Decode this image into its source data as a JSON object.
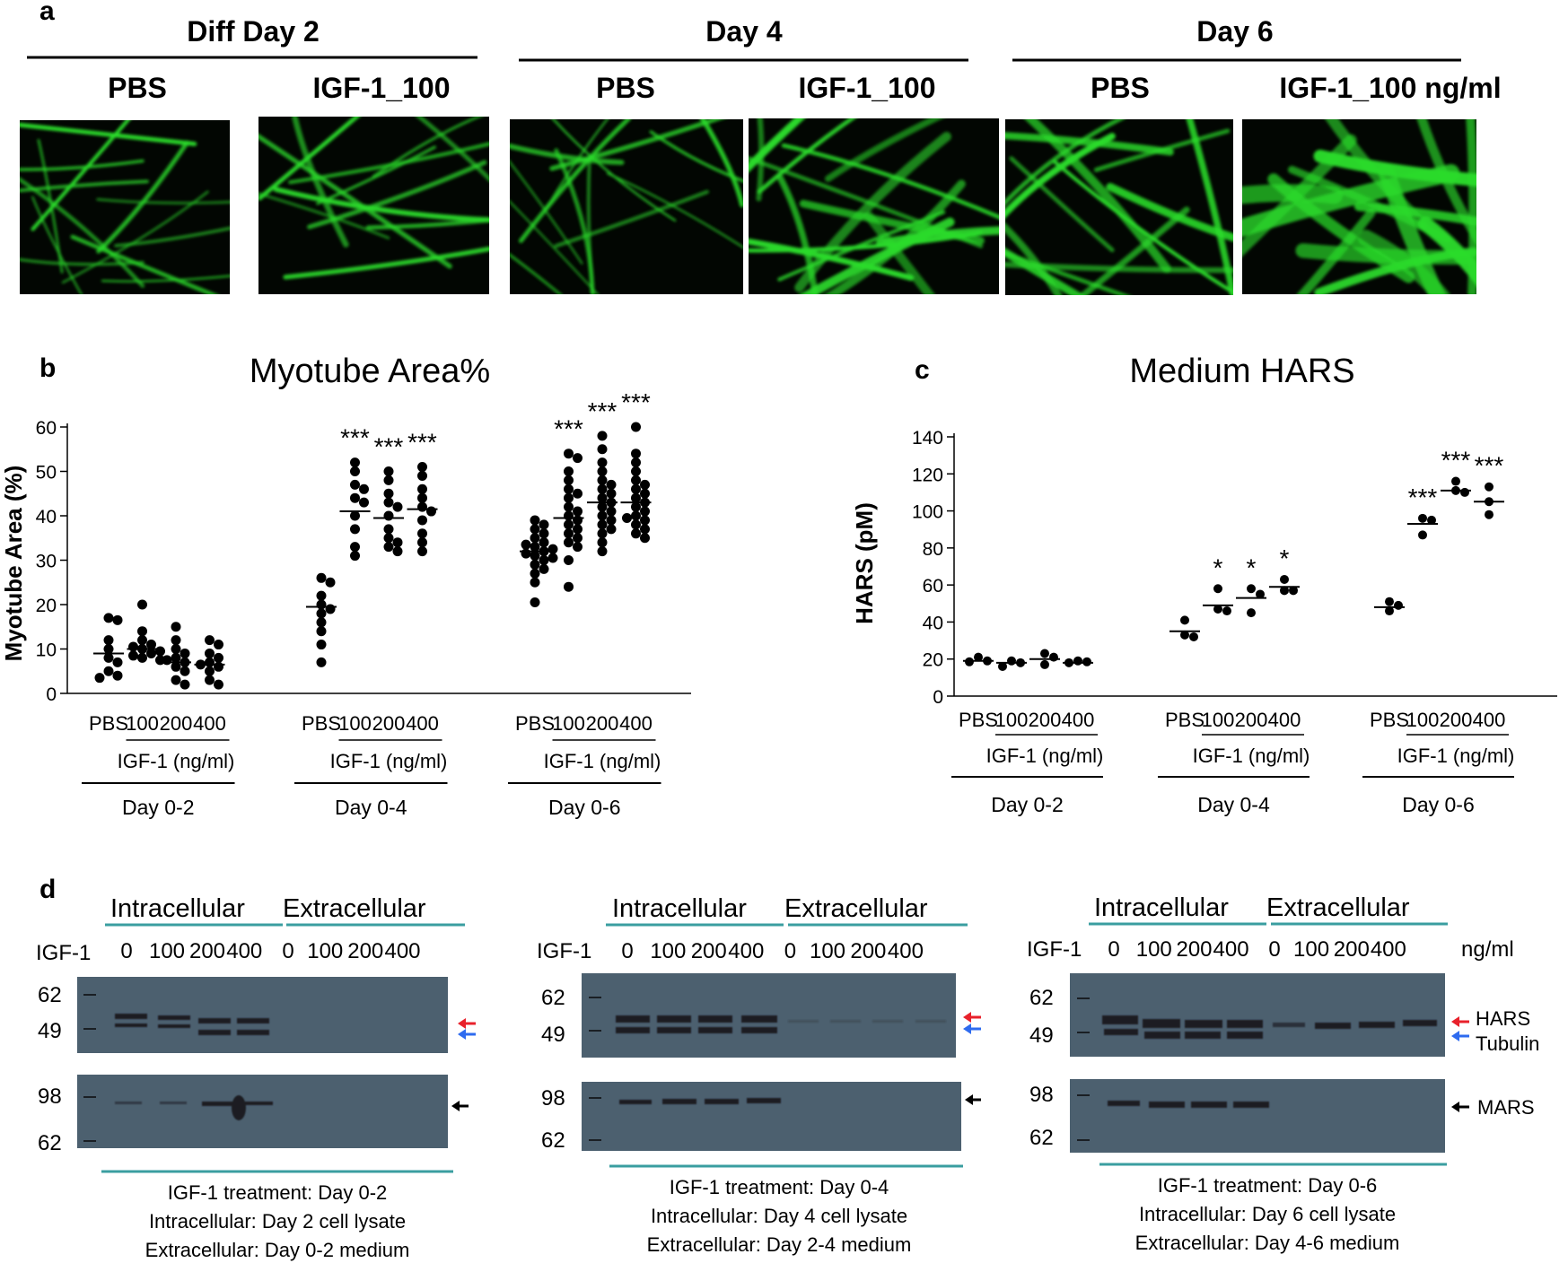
{
  "panel_a": {
    "letter": "a",
    "headers": [
      "Diff Day 2",
      "Day 4",
      "Day 6"
    ],
    "image_labels": [
      "PBS",
      "IGF-1_100",
      "PBS",
      "IGF-1_100",
      "PBS",
      "IGF-1_100 ng/ml"
    ]
  },
  "panel_b": {
    "letter": "b",
    "title": "Myotube Area%",
    "ylabel": "Myotube Area (%)",
    "ylim": [
      0,
      60
    ],
    "yticks": [
      "0",
      "10",
      "20",
      "30",
      "40",
      "50",
      "60"
    ],
    "categories": [
      "PBS",
      "100",
      "200",
      "400",
      "PBS",
      "100",
      "200",
      "400",
      "PBS",
      "100",
      "200",
      "400"
    ],
    "group_sublabel": "IGF-1 (ng/ml)",
    "group_labels": [
      "Day 0-2",
      "Day 0-4",
      "Day 0-6"
    ],
    "means": [
      9,
      10,
      7,
      6.5,
      19.5,
      41,
      39.5,
      41.5,
      32,
      39.5,
      43,
      43
    ],
    "significance": [
      "",
      "",
      "",
      "",
      "",
      "***",
      "***",
      "***",
      "",
      "***",
      "***",
      "***"
    ],
    "points": [
      [
        17,
        16.5,
        12,
        10,
        8,
        7,
        5,
        4,
        3.5
      ],
      [
        20,
        14,
        12,
        11,
        10.5,
        10,
        9.5,
        9,
        8.5,
        8,
        7.5
      ],
      [
        15,
        12,
        10,
        9,
        8,
        7.5,
        7,
        6,
        5,
        3,
        2
      ],
      [
        12,
        11,
        9,
        8,
        7,
        6.5,
        6,
        5,
        3,
        2
      ],
      [
        26,
        25,
        22,
        20,
        19,
        18,
        16,
        14,
        11,
        7
      ],
      [
        52,
        50,
        47,
        46,
        44,
        43,
        40,
        37,
        33,
        31
      ],
      [
        50,
        48,
        45,
        43,
        42,
        40,
        37,
        35,
        34,
        33,
        32
      ],
      [
        51,
        49,
        46,
        44,
        42,
        41,
        39,
        36,
        34,
        32
      ],
      [
        39,
        38,
        37,
        36,
        35,
        34,
        33.5,
        33,
        32.5,
        32,
        31.5,
        31,
        30.5,
        30,
        29,
        28,
        27,
        25,
        20.5
      ],
      [
        54,
        53,
        50,
        48,
        46,
        45,
        44,
        42,
        41,
        40,
        39,
        38,
        37,
        36,
        35,
        34,
        33,
        30,
        24
      ],
      [
        58,
        55,
        52,
        50,
        48,
        47,
        46,
        45,
        44,
        43,
        42,
        41,
        40,
        39,
        38,
        37,
        36,
        34,
        32
      ],
      [
        60,
        54,
        52,
        50,
        48,
        47,
        46,
        45,
        44,
        43,
        42,
        41,
        40,
        39.5,
        39,
        38,
        37,
        36,
        35
      ]
    ]
  },
  "panel_c": {
    "letter": "c",
    "title": "Medium HARS",
    "ylabel": "HARS (pM)",
    "ylim": [
      0,
      140
    ],
    "yticks": [
      "0",
      "20",
      "40",
      "60",
      "80",
      "100",
      "120",
      "140"
    ],
    "categories": [
      "PBS",
      "100",
      "200",
      "400",
      "PBS",
      "100",
      "200",
      "400",
      "PBS",
      "100",
      "200",
      "400"
    ],
    "group_sublabel": "IGF-1 (ng/ml)",
    "group_labels": [
      "Day 0-2",
      "Day 0-4",
      "Day 0-6"
    ],
    "means": [
      19,
      18,
      20,
      18,
      35,
      49,
      53,
      59,
      48,
      93,
      111,
      105
    ],
    "significance": [
      "",
      "",
      "",
      "",
      "",
      "*",
      "*",
      "*",
      "",
      "***",
      "***",
      "***"
    ],
    "points": [
      [
        21,
        19,
        18.5
      ],
      [
        19,
        18,
        16
      ],
      [
        23,
        21,
        17
      ],
      [
        19,
        18.5,
        18
      ],
      [
        41,
        33,
        32
      ],
      [
        58,
        47,
        46
      ],
      [
        58,
        55,
        45
      ],
      [
        63,
        57,
        57
      ],
      [
        51,
        49,
        46
      ],
      [
        96,
        95,
        87
      ],
      [
        116,
        111,
        110
      ],
      [
        113,
        105,
        98
      ]
    ]
  },
  "panel_d": {
    "letter": "d",
    "blots": [
      {
        "section_labels": [
          "Intracellular",
          "Extracellular"
        ],
        "row_label": "IGF-1",
        "doses": [
          "0",
          "100",
          "200",
          "400",
          "0",
          "100",
          "200",
          "400"
        ],
        "mw_top": [
          "62",
          "49"
        ],
        "mw_bottom": [
          "98",
          "62"
        ],
        "caption": [
          "IGF-1 treatment: Day 0-2",
          "Intracellular: Day 2 cell lysate",
          "Extracellular: Day 0-2 medium"
        ]
      },
      {
        "section_labels": [
          "Intracellular",
          "Extracellular"
        ],
        "row_label": "IGF-1",
        "doses": [
          "0",
          "100",
          "200",
          "400",
          "0",
          "100",
          "200",
          "400"
        ],
        "mw_top": [
          "62",
          "49"
        ],
        "mw_bottom": [
          "98",
          "62"
        ],
        "caption": [
          "IGF-1 treatment: Day 0-4",
          "Intracellular: Day 4 cell lysate",
          "Extracellular: Day 2-4 medium"
        ]
      },
      {
        "section_labels": [
          "Intracellular",
          "Extracellular"
        ],
        "row_label": "IGF-1",
        "doses": [
          "0",
          "100",
          "200",
          "400",
          "0",
          "100",
          "200",
          "400"
        ],
        "unit": "ng/ml",
        "mw_top": [
          "62",
          "49"
        ],
        "mw_bottom": [
          "98",
          "62"
        ],
        "markers": [
          "HARS",
          "Tubulin",
          "MARS"
        ],
        "caption": [
          "IGF-1 treatment: Day 0-6",
          "Intracellular: Day 6 cell lysate",
          "Extracellular: Day 4-6 medium"
        ]
      }
    ],
    "arrow_colors": {
      "hars": "#e8212b",
      "tubulin": "#2e6bef",
      "mars": "#000000"
    }
  },
  "colors": {
    "green": "#2bdc2b",
    "teal": "#3a9ea0",
    "blot_bg": "#4a5e6e",
    "band": "#1a1f24"
  }
}
